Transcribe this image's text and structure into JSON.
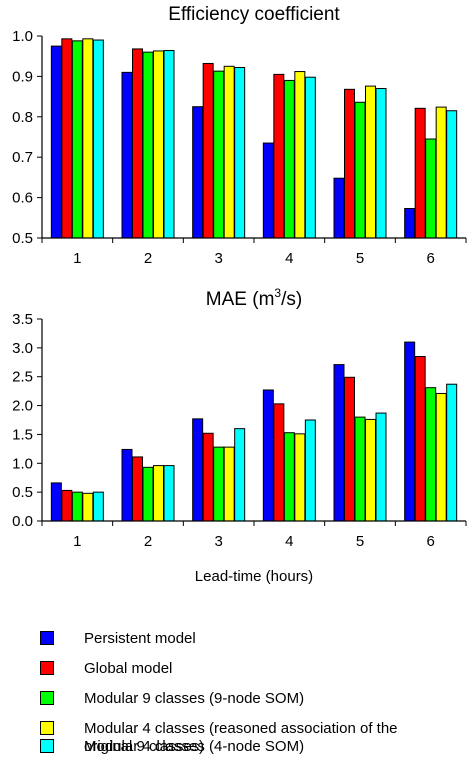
{
  "chart_data": [
    {
      "type": "bar",
      "title": "Efficiency coefficient",
      "categories": [
        "1",
        "2",
        "3",
        "4",
        "5",
        "6"
      ],
      "ylim": [
        0.5,
        1.0
      ],
      "yticks": [
        "0.5",
        "0.6",
        "0.7",
        "0.8",
        "0.9",
        "1.0"
      ],
      "xlabel": "",
      "series": [
        {
          "name": "Persistent model",
          "color": "#0000ff",
          "values": [
            0.975,
            0.91,
            0.825,
            0.735,
            0.648,
            0.573
          ]
        },
        {
          "name": "Global model",
          "color": "#ff0000",
          "values": [
            0.993,
            0.968,
            0.932,
            0.905,
            0.868,
            0.821
          ]
        },
        {
          "name": "Modular 9 classes (9-node SOM)",
          "color": "#00ff00",
          "values": [
            0.988,
            0.96,
            0.913,
            0.89,
            0.836,
            0.745
          ]
        },
        {
          "name": "Modular 4 classes (reasoned association of the original 9 classes)",
          "color": "#ffff00",
          "values": [
            0.993,
            0.963,
            0.925,
            0.912,
            0.876,
            0.824
          ]
        },
        {
          "name": "Modular 4 classes (4-node SOM)",
          "color": "#00ffff",
          "values": [
            0.99,
            0.964,
            0.922,
            0.898,
            0.87,
            0.815
          ]
        }
      ]
    },
    {
      "type": "bar",
      "title": "MAE (m",
      "title_sup": "3",
      "title_end": "/s)",
      "categories": [
        "1",
        "2",
        "3",
        "4",
        "5",
        "6"
      ],
      "ylim": [
        0.0,
        3.5
      ],
      "yticks": [
        "0.0",
        "0.5",
        "1.0",
        "1.5",
        "2.0",
        "2.5",
        "3.0",
        "3.5"
      ],
      "xlabel": "Lead-time (hours)",
      "series": [
        {
          "name": "Persistent model",
          "color": "#0000ff",
          "values": [
            0.66,
            1.24,
            1.77,
            2.27,
            2.71,
            3.1
          ]
        },
        {
          "name": "Global model",
          "color": "#ff0000",
          "values": [
            0.53,
            1.11,
            1.52,
            2.03,
            2.49,
            2.85
          ]
        },
        {
          "name": "Modular 9 classes (9-node SOM)",
          "color": "#00ff00",
          "values": [
            0.5,
            0.93,
            1.28,
            1.53,
            1.8,
            2.31
          ]
        },
        {
          "name": "Modular 4 classes (reasoned association of the original 9 classes)",
          "color": "#ffff00",
          "values": [
            0.48,
            0.96,
            1.28,
            1.51,
            1.76,
            2.21
          ]
        },
        {
          "name": "Modular 4 classes (4-node SOM)",
          "color": "#00ffff",
          "values": [
            0.5,
            0.96,
            1.6,
            1.75,
            1.87,
            2.37
          ]
        }
      ]
    }
  ],
  "legend": {
    "placement": "bottom",
    "items": [
      {
        "label": "Persistent model",
        "color": "#0000ff"
      },
      {
        "label": "Global model",
        "color": "#ff0000"
      },
      {
        "label": "Modular 9 classes (9-node SOM)",
        "color": "#00ff00"
      },
      {
        "label": "Modular 4 classes (reasoned association of the original 9 classes)",
        "color": "#ffff00"
      },
      {
        "label": "Modular 4 classes (4-node SOM)",
        "color": "#00ffff"
      }
    ]
  }
}
